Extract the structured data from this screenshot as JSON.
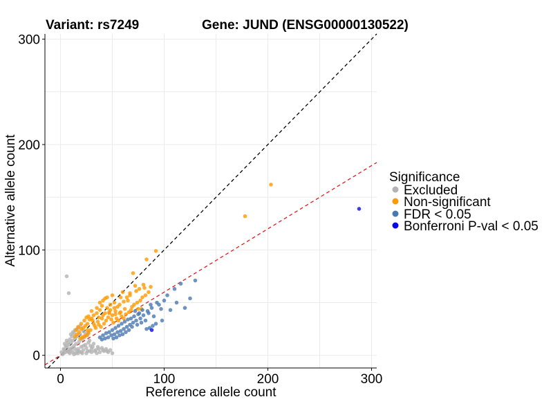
{
  "chart_data": {
    "type": "scatter",
    "title_left": "Variant: rs7249",
    "title_right": "Gene: JUND (ENSG00000130522)",
    "xlabel": "Reference allele count",
    "ylabel": "Alternative allele count",
    "xlim": [
      -15,
      305
    ],
    "ylim": [
      -12,
      305
    ],
    "xticks": [
      0,
      100,
      200,
      300
    ],
    "yticks": [
      0,
      100,
      200,
      300
    ],
    "grid": true,
    "reference_lines": [
      {
        "name": "identity",
        "slope": 1.0,
        "intercept": 0,
        "color": "#000000",
        "style": "dashed"
      },
      {
        "name": "expected-ratio",
        "slope": 0.6,
        "intercept": 0,
        "color": "#e41a1c",
        "style": "dashed"
      }
    ],
    "legend": {
      "title": "Significance",
      "position": "right",
      "entries": [
        {
          "label": "Excluded",
          "color": "#b3b3b3"
        },
        {
          "label": "Non-significant",
          "color": "#ff9900"
        },
        {
          "label": "FDR < 0.05",
          "color": "#4a78b0"
        },
        {
          "label": "Bonferroni P-val < 0.05",
          "color": "#0a0ae6"
        }
      ]
    },
    "series": [
      {
        "name": "Excluded",
        "color": "#b3b3b3",
        "points": [
          [
            6,
            75
          ],
          [
            8,
            59
          ],
          [
            3,
            2
          ],
          [
            4,
            5
          ],
          [
            5,
            3
          ],
          [
            6,
            8
          ],
          [
            7,
            4
          ],
          [
            8,
            10
          ],
          [
            9,
            6
          ],
          [
            10,
            12
          ],
          [
            11,
            7
          ],
          [
            12,
            14
          ],
          [
            13,
            9
          ],
          [
            14,
            16
          ],
          [
            15,
            11
          ],
          [
            16,
            18
          ],
          [
            17,
            6
          ],
          [
            18,
            13
          ],
          [
            19,
            20
          ],
          [
            20,
            8
          ],
          [
            21,
            15
          ],
          [
            22,
            5
          ],
          [
            23,
            17
          ],
          [
            24,
            10
          ],
          [
            25,
            7
          ],
          [
            26,
            19
          ],
          [
            27,
            12
          ],
          [
            28,
            4
          ],
          [
            29,
            9
          ],
          [
            30,
            6
          ],
          [
            32,
            11
          ],
          [
            34,
            5
          ],
          [
            36,
            8
          ],
          [
            38,
            3
          ],
          [
            40,
            7
          ],
          [
            42,
            4
          ],
          [
            44,
            6
          ],
          [
            46,
            3
          ],
          [
            48,
            5
          ],
          [
            50,
            2
          ],
          [
            12,
            3
          ],
          [
            15,
            2
          ],
          [
            18,
            4
          ],
          [
            20,
            3
          ],
          [
            25,
            2
          ],
          [
            30,
            3
          ],
          [
            35,
            2
          ],
          [
            10,
            20
          ],
          [
            12,
            22
          ],
          [
            14,
            24
          ],
          [
            16,
            25
          ],
          [
            9,
            15
          ],
          [
            7,
            12
          ],
          [
            11,
            18
          ],
          [
            5,
            9
          ],
          [
            4,
            11
          ],
          [
            6,
            14
          ],
          [
            13,
            21
          ],
          [
            17,
            26
          ],
          [
            19,
            28
          ],
          [
            22,
            23
          ],
          [
            24,
            21
          ],
          [
            27,
            22
          ],
          [
            8,
            3
          ],
          [
            10,
            5
          ],
          [
            14,
            6
          ],
          [
            16,
            4
          ],
          [
            21,
            2
          ],
          [
            26,
            4
          ],
          [
            31,
            8
          ],
          [
            33,
            4
          ],
          [
            37,
            6
          ],
          [
            41,
            5
          ],
          [
            45,
            4
          ],
          [
            2,
            1
          ],
          [
            3,
            6
          ],
          [
            1,
            3
          ],
          [
            9,
            2
          ],
          [
            13,
            1
          ],
          [
            17,
            2
          ],
          [
            22,
            9
          ],
          [
            28,
            14
          ]
        ]
      },
      {
        "name": "Non-significant",
        "color": "#ff9900",
        "points": [
          [
            92,
            99
          ],
          [
            83,
            91
          ],
          [
            70,
            78
          ],
          [
            72,
            66
          ],
          [
            80,
            67
          ],
          [
            67,
            59
          ],
          [
            58,
            55
          ],
          [
            52,
            50
          ],
          [
            60,
            60
          ],
          [
            65,
            52
          ],
          [
            45,
            45
          ],
          [
            41,
            52
          ],
          [
            38,
            50
          ],
          [
            43,
            54
          ],
          [
            48,
            48
          ],
          [
            55,
            46
          ],
          [
            62,
            44
          ],
          [
            68,
            43
          ],
          [
            75,
            44
          ],
          [
            78,
            44
          ],
          [
            47,
            40
          ],
          [
            50,
            38
          ],
          [
            53,
            42
          ],
          [
            57,
            40
          ],
          [
            35,
            40
          ],
          [
            32,
            38
          ],
          [
            30,
            35
          ],
          [
            28,
            34
          ],
          [
            26,
            30
          ],
          [
            24,
            28
          ],
          [
            22,
            26
          ],
          [
            20,
            25
          ],
          [
            18,
            22
          ],
          [
            40,
            35
          ],
          [
            42,
            30
          ],
          [
            36,
            32
          ],
          [
            33,
            28
          ],
          [
            29,
            24
          ],
          [
            27,
            21
          ],
          [
            25,
            19
          ],
          [
            23,
            18
          ],
          [
            21,
            17
          ],
          [
            19,
            16
          ],
          [
            34,
            26
          ],
          [
            37,
            29
          ],
          [
            39,
            27
          ],
          [
            44,
            33
          ],
          [
            46,
            36
          ],
          [
            49,
            34
          ],
          [
            51,
            31
          ],
          [
            54,
            35
          ],
          [
            56,
            33
          ],
          [
            59,
            37
          ],
          [
            61,
            35
          ],
          [
            63,
            39
          ],
          [
            66,
            41
          ],
          [
            69,
            46
          ],
          [
            71,
            48
          ],
          [
            74,
            50
          ],
          [
            77,
            52
          ],
          [
            79,
            55
          ],
          [
            82,
            57
          ],
          [
            85,
            60
          ],
          [
            45,
            55
          ],
          [
            50,
            57
          ],
          [
            40,
            47
          ],
          [
            35,
            45
          ],
          [
            30,
            42
          ],
          [
            25,
            36
          ],
          [
            20,
            30
          ],
          [
            15,
            24
          ],
          [
            17,
            27
          ],
          [
            23,
            33
          ],
          [
            27,
            37
          ],
          [
            31,
            33
          ],
          [
            38,
            43
          ],
          [
            43,
            40
          ],
          [
            48,
            43
          ],
          [
            52,
            45
          ],
          [
            57,
            48
          ],
          [
            61,
            51
          ],
          [
            64,
            55
          ],
          [
            67,
            57
          ],
          [
            73,
            61
          ],
          [
            76,
            63
          ],
          [
            81,
            64
          ],
          [
            87,
            65
          ],
          [
            178,
            132
          ],
          [
            203,
            162
          ],
          [
            14,
            18
          ],
          [
            16,
            20
          ],
          [
            26,
            24
          ],
          [
            32,
            30
          ],
          [
            37,
            36
          ],
          [
            41,
            38
          ],
          [
            47,
            41
          ],
          [
            53,
            39
          ],
          [
            58,
            41
          ]
        ]
      },
      {
        "name": "FDR < 0.05",
        "color": "#4a78b0",
        "points": [
          [
            130,
            71
          ],
          [
            116,
            68
          ],
          [
            110,
            63
          ],
          [
            125,
            54
          ],
          [
            103,
            57
          ],
          [
            97,
            44
          ],
          [
            90,
            37
          ],
          [
            85,
            40
          ],
          [
            80,
            38
          ],
          [
            77,
            35
          ],
          [
            73,
            33
          ],
          [
            70,
            31
          ],
          [
            67,
            29
          ],
          [
            64,
            27
          ],
          [
            61,
            25
          ],
          [
            58,
            23
          ],
          [
            55,
            22
          ],
          [
            52,
            20
          ],
          [
            49,
            19
          ],
          [
            46,
            17
          ],
          [
            43,
            16
          ],
          [
            40,
            15
          ],
          [
            88,
            45
          ],
          [
            84,
            42
          ],
          [
            79,
            43
          ],
          [
            75,
            39
          ],
          [
            71,
            37
          ],
          [
            68,
            35
          ],
          [
            65,
            34
          ],
          [
            62,
            32
          ],
          [
            59,
            30
          ],
          [
            56,
            28
          ],
          [
            53,
            26
          ],
          [
            50,
            24
          ],
          [
            47,
            22
          ],
          [
            44,
            21
          ],
          [
            41,
            19
          ],
          [
            38,
            17
          ],
          [
            95,
            48
          ],
          [
            100,
            52
          ],
          [
            93,
            50
          ],
          [
            87,
            48
          ],
          [
            82,
            33
          ],
          [
            78,
            31
          ],
          [
            74,
            29
          ],
          [
            69,
            27
          ],
          [
            66,
            24
          ],
          [
            63,
            22
          ],
          [
            60,
            20
          ],
          [
            57,
            19
          ],
          [
            54,
            17
          ],
          [
            51,
            16
          ],
          [
            98,
            33
          ],
          [
            92,
            30
          ],
          [
            89,
            28
          ],
          [
            86,
            26
          ],
          [
            83,
            25
          ],
          [
            106,
            43
          ],
          [
            112,
            50
          ],
          [
            120,
            45
          ],
          [
            76,
            40
          ],
          [
            72,
            42
          ]
        ]
      },
      {
        "name": "Bonferroni P-val < 0.05",
        "color": "#0a0ae6",
        "points": [
          [
            288,
            139
          ],
          [
            88,
            24
          ]
        ]
      }
    ]
  }
}
